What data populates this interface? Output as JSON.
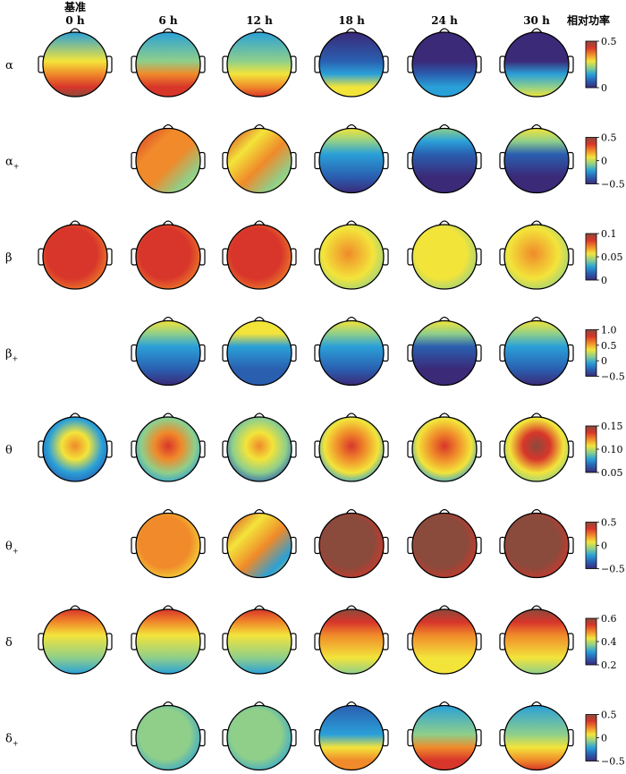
{
  "figure": {
    "baseline_label": "基准",
    "colorbar_title": "相对功率",
    "columns": [
      "0 h",
      "6 h",
      "12 h",
      "18 h",
      "24 h",
      "30 h"
    ]
  },
  "colors": {
    "scale": [
      "#3a2a78",
      "#2a5fb0",
      "#2aa0d8",
      "#8fcf8a",
      "#f3e43a",
      "#f08a2a",
      "#d8362a",
      "#8a4a3c"
    ]
  },
  "rows": [
    {
      "label": "α",
      "sub": "",
      "ticks": [
        "0.5",
        "0"
      ],
      "maps": [
        {
          "col": 0,
          "kind": "bottomhot",
          "level": 0.85
        },
        {
          "col": 1,
          "kind": "bottomhot",
          "level": 0.75
        },
        {
          "col": 2,
          "kind": "bottomhot",
          "level": 0.72
        },
        {
          "col": 3,
          "kind": "bottomhot",
          "level": 0.45
        },
        {
          "col": 4,
          "kind": "bottomhot",
          "level": 0.22
        },
        {
          "col": 5,
          "kind": "bottomhot",
          "level": 0.4
        }
      ]
    },
    {
      "label": "α",
      "sub": "+",
      "ticks": [
        "0.5",
        "0",
        "−0.5"
      ],
      "maps": [
        {
          "col": 1,
          "kind": "mixed",
          "level": 0.7
        },
        {
          "col": 2,
          "kind": "mixed",
          "level": 0.65
        },
        {
          "col": 3,
          "kind": "tophot",
          "level": 0.3
        },
        {
          "col": 4,
          "kind": "tophot",
          "level": 0.2
        },
        {
          "col": 5,
          "kind": "tophot",
          "level": 0.25
        }
      ]
    },
    {
      "label": "β",
      "sub": "",
      "ticks": [
        "0.1",
        "0.05",
        "0"
      ],
      "maps": [
        {
          "col": 0,
          "kind": "uniform",
          "level": 0.82
        },
        {
          "col": 1,
          "kind": "uniform",
          "level": 0.8
        },
        {
          "col": 2,
          "kind": "uniform",
          "level": 0.85
        },
        {
          "col": 3,
          "kind": "uniform",
          "level": 0.6
        },
        {
          "col": 4,
          "kind": "uniform",
          "level": 0.55
        },
        {
          "col": 5,
          "kind": "uniform",
          "level": 0.6
        }
      ]
    },
    {
      "label": "β",
      "sub": "+",
      "ticks": [
        "1.0",
        "0.5",
        "0",
        "−0.5"
      ],
      "maps": [
        {
          "col": 1,
          "kind": "tophot",
          "level": 0.35
        },
        {
          "col": 2,
          "kind": "tophot",
          "level": 0.38
        },
        {
          "col": 3,
          "kind": "tophot",
          "level": 0.3
        },
        {
          "col": 4,
          "kind": "tophot",
          "level": 0.25
        },
        {
          "col": 5,
          "kind": "tophot",
          "level": 0.3
        }
      ]
    },
    {
      "label": "θ",
      "sub": "",
      "ticks": [
        "0.15",
        "0.10",
        "0.05"
      ],
      "maps": [
        {
          "col": 0,
          "kind": "centerhot",
          "level": 0.65
        },
        {
          "col": 1,
          "kind": "centerhot",
          "level": 0.8
        },
        {
          "col": 2,
          "kind": "centerhot",
          "level": 0.75
        },
        {
          "col": 3,
          "kind": "centerhot",
          "level": 0.9
        },
        {
          "col": 4,
          "kind": "centerhot",
          "level": 0.9
        },
        {
          "col": 5,
          "kind": "centerhot",
          "level": 0.95
        }
      ]
    },
    {
      "label": "θ",
      "sub": "+",
      "ticks": [
        "0.5",
        "0",
        "−0.5"
      ],
      "maps": [
        {
          "col": 1,
          "kind": "uniform",
          "level": 0.68
        },
        {
          "col": 2,
          "kind": "mixed",
          "level": 0.6
        },
        {
          "col": 3,
          "kind": "uniform",
          "level": 0.95
        },
        {
          "col": 4,
          "kind": "uniform",
          "level": 0.95
        },
        {
          "col": 5,
          "kind": "uniform",
          "level": 0.97
        }
      ]
    },
    {
      "label": "δ",
      "sub": "",
      "ticks": [
        "0.6",
        "0.4",
        "0.2"
      ],
      "maps": [
        {
          "col": 0,
          "kind": "tophot",
          "level": 0.62
        },
        {
          "col": 1,
          "kind": "tophot",
          "level": 0.65
        },
        {
          "col": 2,
          "kind": "tophot",
          "level": 0.65
        },
        {
          "col": 3,
          "kind": "tophot",
          "level": 0.72
        },
        {
          "col": 4,
          "kind": "tophot",
          "level": 0.8
        },
        {
          "col": 5,
          "kind": "tophot",
          "level": 0.78
        }
      ]
    },
    {
      "label": "δ",
      "sub": "+",
      "ticks": [
        "0.5",
        "0",
        "−0.5"
      ],
      "maps": [
        {
          "col": 1,
          "kind": "uniform",
          "level": 0.4
        },
        {
          "col": 2,
          "kind": "uniform",
          "level": 0.42
        },
        {
          "col": 3,
          "kind": "bottomhot",
          "level": 0.65
        },
        {
          "col": 4,
          "kind": "bottomhot",
          "level": 0.78
        },
        {
          "col": 5,
          "kind": "bottomhot",
          "level": 0.72
        }
      ]
    }
  ]
}
